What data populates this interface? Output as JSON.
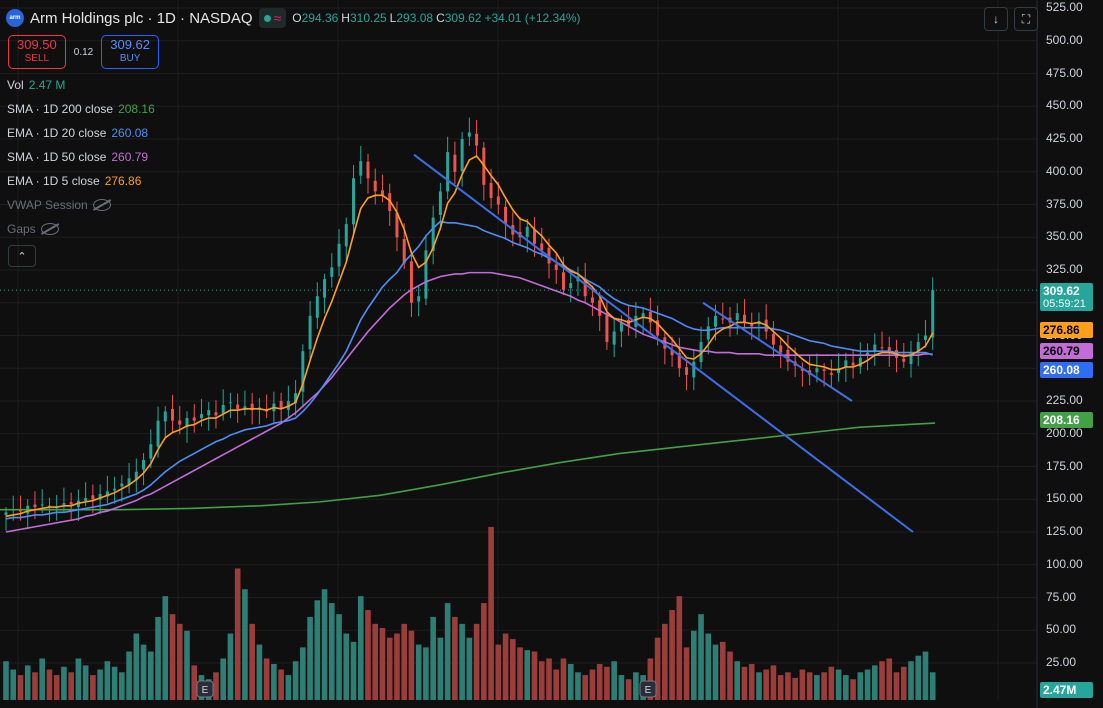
{
  "header": {
    "logo_text": "arm",
    "symbol_title": "Arm Holdings plc · 1D · NASDAQ",
    "status_wave": "≈",
    "ohlc": [
      {
        "k": "O",
        "v": "294.36"
      },
      {
        "k": "H",
        "v": "310.25"
      },
      {
        "k": "L",
        "v": "293.08"
      },
      {
        "k": "C",
        "v": "309.62"
      },
      {
        "k": "",
        "v": "+34.01 (+12.34%)"
      }
    ]
  },
  "trade": {
    "sell_price": "309.50",
    "sell_label": "SELL",
    "spread": "0.12",
    "buy_price": "309.62",
    "buy_label": "BUY"
  },
  "indicators": [
    {
      "label": "Vol",
      "value": "2.47 M",
      "color": "#26a69a"
    },
    {
      "label": "SMA · 1D 200 close",
      "value": "208.16",
      "color": "#43a047"
    },
    {
      "label": "EMA · 1D 20 close",
      "value": "260.08",
      "color": "#4f8ef7"
    },
    {
      "label": "SMA · 1D 50 close",
      "value": "260.79",
      "color": "#c36bd9"
    },
    {
      "label": "EMA · 1D 5 close",
      "value": "276.86",
      "color": "#ff9f1c"
    },
    {
      "label": "VWAP Session",
      "value": "",
      "color": "#6a6d78"
    },
    {
      "label": "Gaps",
      "value": "",
      "color": "#6a6d78"
    }
  ],
  "collapse_icon": "chevron-up-icon",
  "toolbar_icons": [
    "arrow-down-icon",
    "fullscreen-icon"
  ],
  "price_tags": [
    {
      "text": "309.62",
      "sub": "05:59:21",
      "bg": "#26a69a",
      "color": "#ffffff",
      "value": 309.62
    },
    {
      "text": "276.86",
      "bg": "#ff9f1c",
      "color": "#000000",
      "value": 276.86
    },
    {
      "text": "260.79",
      "bg": "#c36bd9",
      "color": "#000000",
      "value": 260.79
    },
    {
      "text": "260.08",
      "bg": "#2f6df6",
      "color": "#ffffff",
      "value": 260.08
    },
    {
      "text": "208.16",
      "bg": "#43a047",
      "color": "#ffffff",
      "value": 208.16
    }
  ],
  "volume_tag": {
    "text": "2.47M",
    "bg": "#26a69a",
    "color": "#ffffff"
  },
  "colors": {
    "up": "#26a69a",
    "down": "#ef5350",
    "volUp": "#2d7f76",
    "volDown": "#9b3d3a",
    "trendline": "#3d6fe8",
    "grid": "#1e1e1e"
  },
  "chart_data": {
    "type": "candlestick",
    "title": "Arm Holdings plc · 1D · NASDAQ",
    "y_ticks": [
      525,
      500,
      475,
      450,
      425,
      400,
      375,
      350,
      325,
      300,
      275,
      250,
      225,
      200,
      175,
      150,
      125,
      100,
      75,
      50,
      25
    ],
    "y_tick_labels": [
      "525.00",
      "500.00",
      "475.00",
      "450.00",
      "425.00",
      "400.00",
      "375.00",
      "350.00",
      "325.00",
      "300.00",
      "275.00",
      "250.00",
      "225.00",
      "200.00",
      "175.00",
      "150.00",
      "125.00",
      "100.00",
      "75.00",
      "50.00",
      "25.00"
    ],
    "ylim": [
      0,
      530
    ],
    "close": [
      140,
      142,
      141,
      145,
      144,
      146,
      145,
      144,
      147,
      146,
      149,
      151,
      150,
      154,
      156,
      158,
      162,
      166,
      171,
      180,
      192,
      210,
      217,
      210,
      207,
      212,
      210,
      215,
      218,
      214,
      222,
      224,
      219,
      221,
      218,
      220,
      217,
      223,
      219,
      225,
      231,
      263,
      290,
      305,
      318,
      327,
      345,
      360,
      395,
      408,
      395,
      385,
      382,
      370,
      350,
      330,
      300,
      305,
      340,
      365,
      385,
      415,
      400,
      425,
      430,
      420,
      390,
      380,
      375,
      360,
      352,
      350,
      358,
      345,
      340,
      330,
      325,
      310,
      315,
      320,
      305,
      300,
      290,
      270,
      278,
      285,
      282,
      290,
      292,
      285,
      275,
      265,
      260,
      250,
      245,
      255,
      270,
      282,
      290,
      288,
      285,
      292,
      285,
      282,
      286,
      278,
      268,
      262,
      255,
      252,
      248,
      245,
      250,
      248,
      245,
      250,
      256,
      252,
      258,
      262,
      268,
      266,
      262,
      258,
      255,
      262,
      270,
      275,
      309.62
    ],
    "ema5": [
      137,
      138,
      139,
      141,
      142,
      143,
      144,
      144,
      145,
      145,
      147,
      148,
      149,
      151,
      153,
      155,
      158,
      161,
      165,
      170,
      177,
      188,
      197,
      201,
      203,
      206,
      207,
      210,
      212,
      212,
      215,
      218,
      218,
      219,
      219,
      219,
      218,
      220,
      219,
      221,
      224,
      238,
      256,
      273,
      288,
      301,
      316,
      331,
      352,
      372,
      380,
      382,
      382,
      378,
      369,
      356,
      338,
      327,
      331,
      342,
      357,
      376,
      384,
      398,
      409,
      412,
      405,
      397,
      390,
      380,
      371,
      364,
      362,
      356,
      351,
      344,
      338,
      329,
      324,
      322,
      317,
      312,
      305,
      293,
      288,
      287,
      285,
      287,
      289,
      288,
      284,
      278,
      272,
      265,
      258,
      257,
      261,
      268,
      276,
      280,
      282,
      285,
      285,
      284,
      285,
      283,
      278,
      273,
      267,
      262,
      257,
      253,
      252,
      251,
      249,
      249,
      251,
      251,
      253,
      256,
      260,
      262,
      262,
      261,
      259,
      260,
      263,
      267,
      276.86
    ],
    "ema20": [
      135,
      136,
      136,
      137,
      138,
      138,
      139,
      140,
      140,
      141,
      142,
      143,
      144,
      145,
      146,
      148,
      150,
      152,
      154,
      157,
      161,
      166,
      171,
      175,
      179,
      182,
      185,
      188,
      191,
      194,
      196,
      199,
      201,
      203,
      204,
      205,
      206,
      208,
      209,
      210,
      212,
      217,
      223,
      230,
      238,
      246,
      254,
      263,
      275,
      287,
      296,
      304,
      312,
      318,
      323,
      331,
      337,
      343,
      351,
      357,
      362,
      361,
      361,
      360,
      359,
      358,
      355,
      353,
      351,
      349,
      346,
      344,
      342,
      339,
      337,
      334,
      331,
      328,
      325,
      322,
      318,
      315,
      312,
      307,
      303,
      300,
      298,
      297,
      296,
      294,
      292,
      290,
      288,
      285,
      282,
      280,
      279,
      279,
      280,
      281,
      281,
      281,
      281,
      281,
      281,
      281,
      280,
      279,
      277,
      275,
      273,
      271,
      270,
      269,
      267,
      266,
      265,
      264,
      263,
      263,
      263,
      263,
      263,
      262,
      262,
      262,
      262,
      262,
      260.08
    ],
    "sma50": [
      125,
      126,
      127,
      128,
      129,
      130,
      131,
      132,
      133,
      134,
      135,
      137,
      138,
      140,
      141,
      143,
      145,
      147,
      149,
      152,
      154,
      157,
      160,
      163,
      166,
      169,
      172,
      175,
      178,
      181,
      184,
      187,
      190,
      193,
      196,
      199,
      202,
      205,
      208,
      212,
      216,
      221,
      226,
      231,
      237,
      243,
      250,
      257,
      264,
      271,
      278,
      284,
      290,
      296,
      301,
      306,
      310,
      313,
      316,
      318,
      320,
      321,
      322,
      322,
      323,
      323,
      323,
      323,
      322,
      321,
      320,
      319,
      317,
      315,
      313,
      311,
      309,
      307,
      305,
      302,
      300,
      297,
      294,
      291,
      288,
      285,
      282,
      279,
      276,
      274,
      272,
      270,
      268,
      266,
      265,
      264,
      263,
      263,
      262,
      262,
      262,
      261,
      261,
      261,
      261,
      260,
      260,
      260,
      260,
      260,
      260,
      260,
      260,
      260,
      260,
      260,
      260,
      260,
      260,
      260,
      260,
      260,
      260,
      260,
      260,
      260,
      260,
      261,
      260.79
    ],
    "sma200_x": [
      0,
      120,
      190,
      260,
      320,
      380,
      440,
      500,
      560,
      620,
      680,
      740,
      800,
      860,
      935
    ],
    "sma200": [
      142,
      142,
      143,
      145,
      148,
      153,
      161,
      170,
      178,
      185,
      190,
      195,
      200,
      205,
      208.16
    ],
    "volume_y_ticks_note": "volume scale shares price axis gridlines",
    "volume": [
      28,
      22,
      18,
      25,
      20,
      30,
      22,
      18,
      24,
      20,
      30,
      25,
      18,
      22,
      28,
      24,
      20,
      35,
      48,
      40,
      35,
      60,
      75,
      62,
      55,
      50,
      25,
      18,
      15,
      20,
      30,
      48,
      95,
      80,
      55,
      40,
      30,
      26,
      22,
      18,
      28,
      38,
      60,
      72,
      80,
      70,
      62,
      48,
      42,
      75,
      65,
      55,
      52,
      45,
      48,
      55,
      50,
      40,
      38,
      60,
      45,
      70,
      60,
      55,
      45,
      55,
      70,
      125,
      40,
      48,
      44,
      38,
      36,
      35,
      28,
      30,
      22,
      30,
      26,
      20,
      18,
      22,
      26,
      24,
      28,
      18,
      15,
      20,
      18,
      30,
      45,
      55,
      65,
      75,
      38,
      50,
      62,
      48,
      40,
      42,
      35,
      28,
      24,
      26,
      20,
      22,
      25,
      18,
      20,
      16,
      22,
      20,
      18,
      20,
      24,
      22,
      18,
      15,
      20,
      22,
      25,
      28,
      30,
      20,
      24,
      28,
      32,
      35,
      20
    ],
    "trendlines": [
      {
        "x1": 414,
        "y1": 413,
        "x2": 913,
        "y2": 125
      },
      {
        "x1": 703,
        "y1": 300,
        "x2": 852,
        "y2": 225
      }
    ],
    "earnings_markers": [
      "E",
      "E"
    ]
  }
}
